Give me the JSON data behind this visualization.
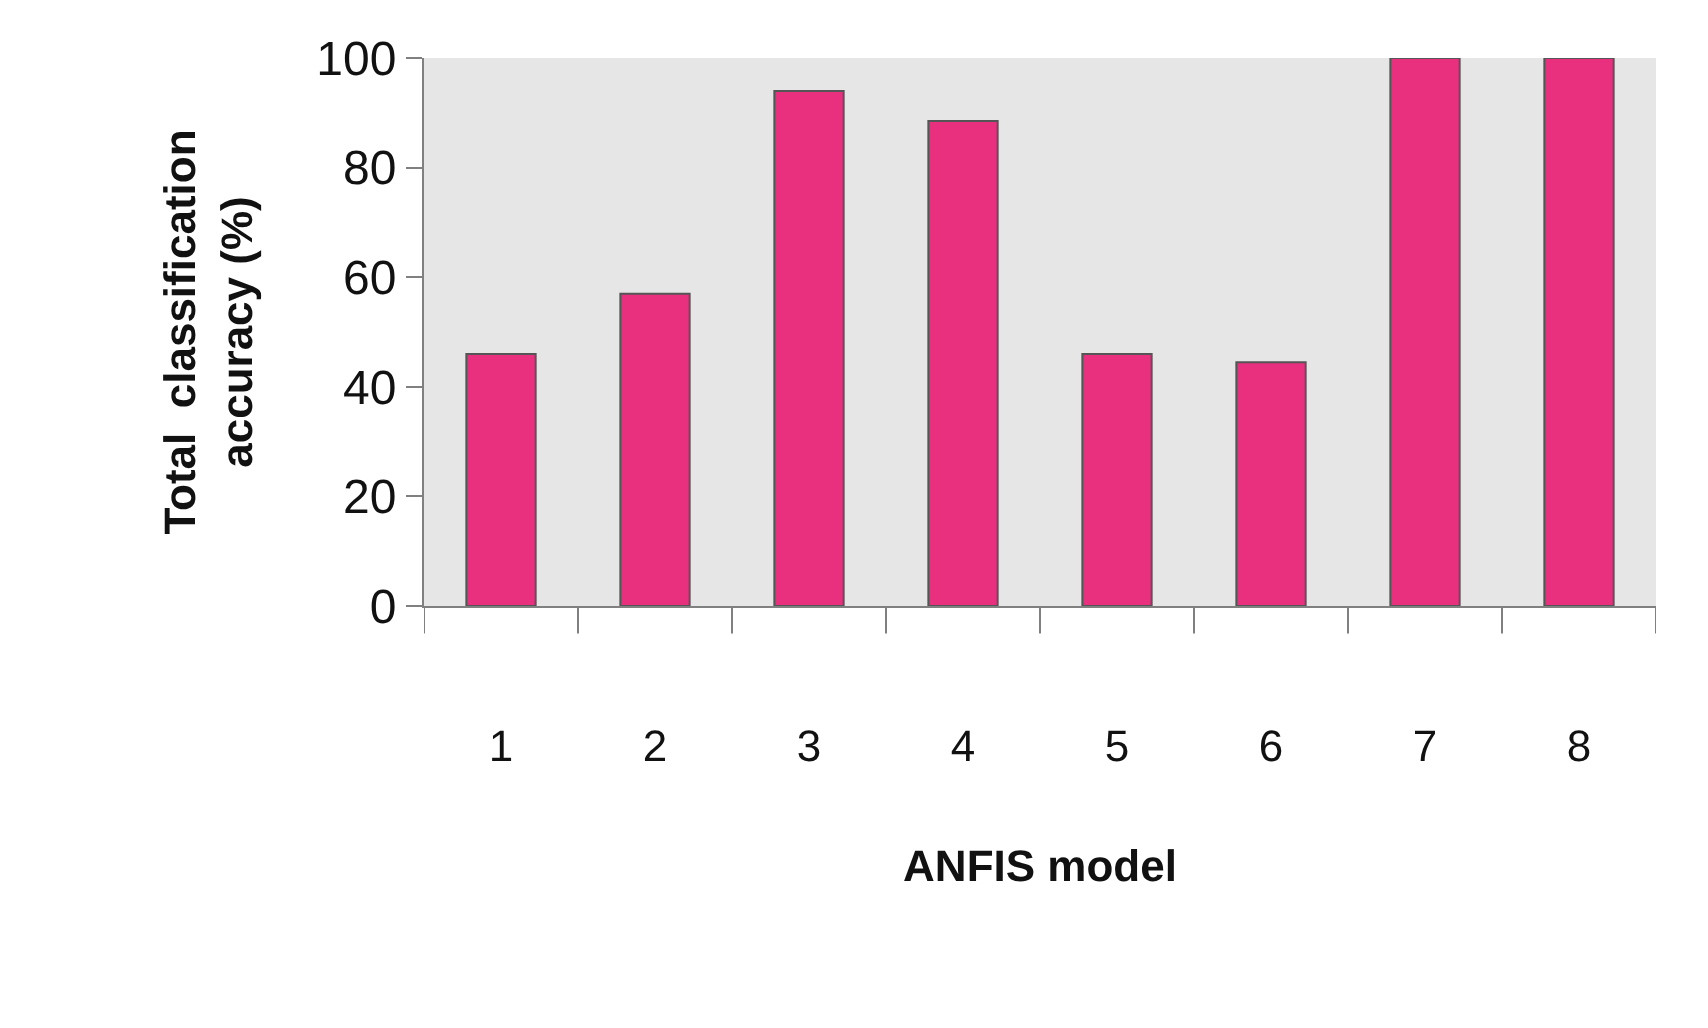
{
  "chart_data": {
    "type": "bar",
    "xlabel": "ANFIS model",
    "ylabel": "Total  classification\naccuracy (%)",
    "categories": [
      "1",
      "2",
      "3",
      "4",
      "5",
      "6",
      "7",
      "8"
    ],
    "values": [
      46,
      57,
      94,
      88.5,
      46,
      44.5,
      100,
      100
    ],
    "color": "#e8307f",
    "ylim": [
      0,
      100
    ],
    "yticks": [
      0,
      20,
      40,
      60,
      80,
      100
    ],
    "grid": false,
    "legend": false
  }
}
